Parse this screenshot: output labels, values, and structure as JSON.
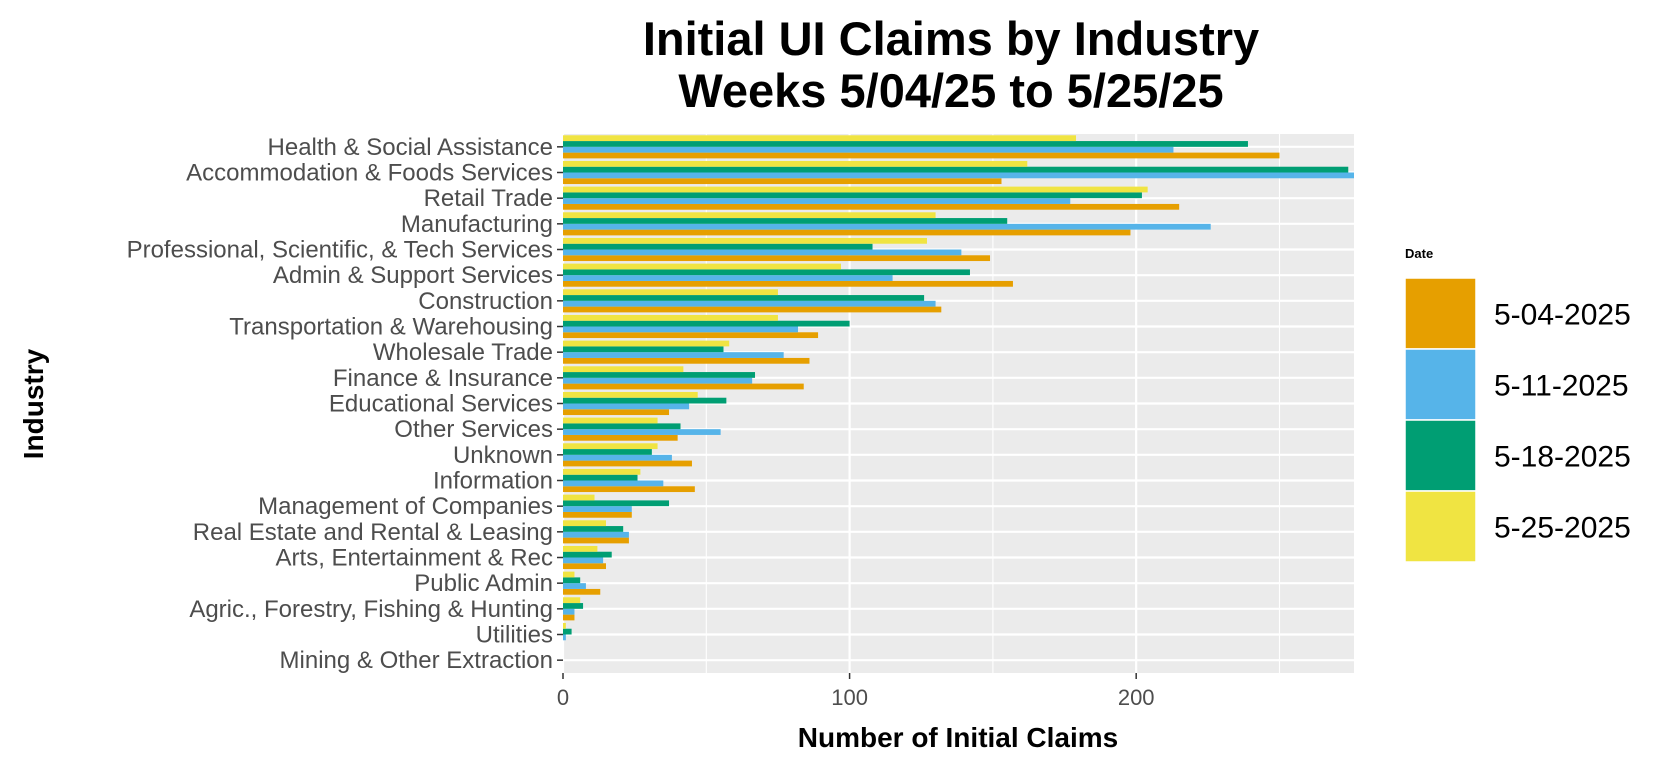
{
  "chart_data": {
    "type": "bar",
    "orientation": "horizontal",
    "title_line1": "Initial UI Claims by Industry",
    "title_line2": "Weeks  5/04/25 to 5/25/25",
    "xlabel": "Number of Initial Claims",
    "ylabel": "Industry",
    "xlim": [
      0,
      276
    ],
    "xticks": [
      0,
      100,
      200
    ],
    "grid": true,
    "legend_title": "Date",
    "legend_position": "right",
    "categories": [
      "Health & Social Assistance",
      "Accommodation & Foods Services",
      "Retail Trade",
      "Manufacturing",
      "Professional, Scientific, & Tech Services",
      "Admin & Support Services",
      "Construction",
      "Transportation & Warehousing",
      "Wholesale Trade",
      "Finance & Insurance",
      "Educational Services",
      "Other Services",
      "Unknown",
      "Information",
      "Management of Companies",
      "Real Estate and Rental & Leasing",
      "Arts, Entertainment & Rec",
      "Public Admin",
      "Agric., Forestry, Fishing & Hunting",
      "Utilities",
      "Mining & Other Extraction"
    ],
    "series": [
      {
        "name": "5-04-2025",
        "color": "#E69F00",
        "values": [
          250,
          153,
          215,
          198,
          149,
          157,
          132,
          89,
          86,
          84,
          37,
          40,
          45,
          46,
          24,
          23,
          15,
          13,
          4,
          0,
          0
        ]
      },
      {
        "name": "5-11-2025",
        "color": "#56B4E9",
        "values": [
          213,
          276,
          177,
          226,
          139,
          115,
          130,
          82,
          77,
          66,
          44,
          55,
          38,
          35,
          24,
          23,
          14,
          8,
          4,
          1,
          0
        ]
      },
      {
        "name": "5-18-2025",
        "color": "#009E73",
        "values": [
          239,
          274,
          202,
          155,
          108,
          142,
          126,
          100,
          56,
          67,
          57,
          41,
          31,
          26,
          37,
          21,
          17,
          6,
          7,
          3,
          0
        ]
      },
      {
        "name": "5-25-2025",
        "color": "#F0E442",
        "values": [
          179,
          162,
          204,
          130,
          127,
          97,
          75,
          75,
          58,
          42,
          47,
          33,
          33,
          27,
          11,
          15,
          12,
          4,
          6,
          1,
          0
        ]
      }
    ]
  },
  "colors": {
    "panel_background": "#EBEBEB",
    "grid_line": "#FFFFFF",
    "tick_text": "#4D4D4D"
  }
}
